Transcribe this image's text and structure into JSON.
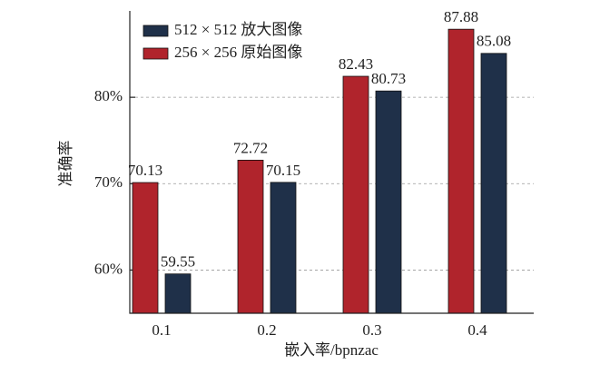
{
  "chart_data": {
    "type": "bar",
    "xlabel": "嵌入率/bpnzac",
    "ylabel": "准确率",
    "categories": [
      "0.1",
      "0.2",
      "0.3",
      "0.4"
    ],
    "series": [
      {
        "name": "512 × 512 放大图像",
        "color": "#1f3049",
        "values": [
          59.55,
          70.15,
          80.73,
          85.08
        ]
      },
      {
        "name": "256 × 256 原始图像",
        "color": "#b0242c",
        "values": [
          70.13,
          72.72,
          82.43,
          87.88
        ]
      }
    ],
    "ylim": [
      55,
      90
    ],
    "yticks": [
      {
        "value": 60,
        "label": "60%"
      },
      {
        "value": 70,
        "label": "70%"
      },
      {
        "value": 80,
        "label": "80%"
      }
    ],
    "grid": true,
    "legend": "upper left"
  }
}
